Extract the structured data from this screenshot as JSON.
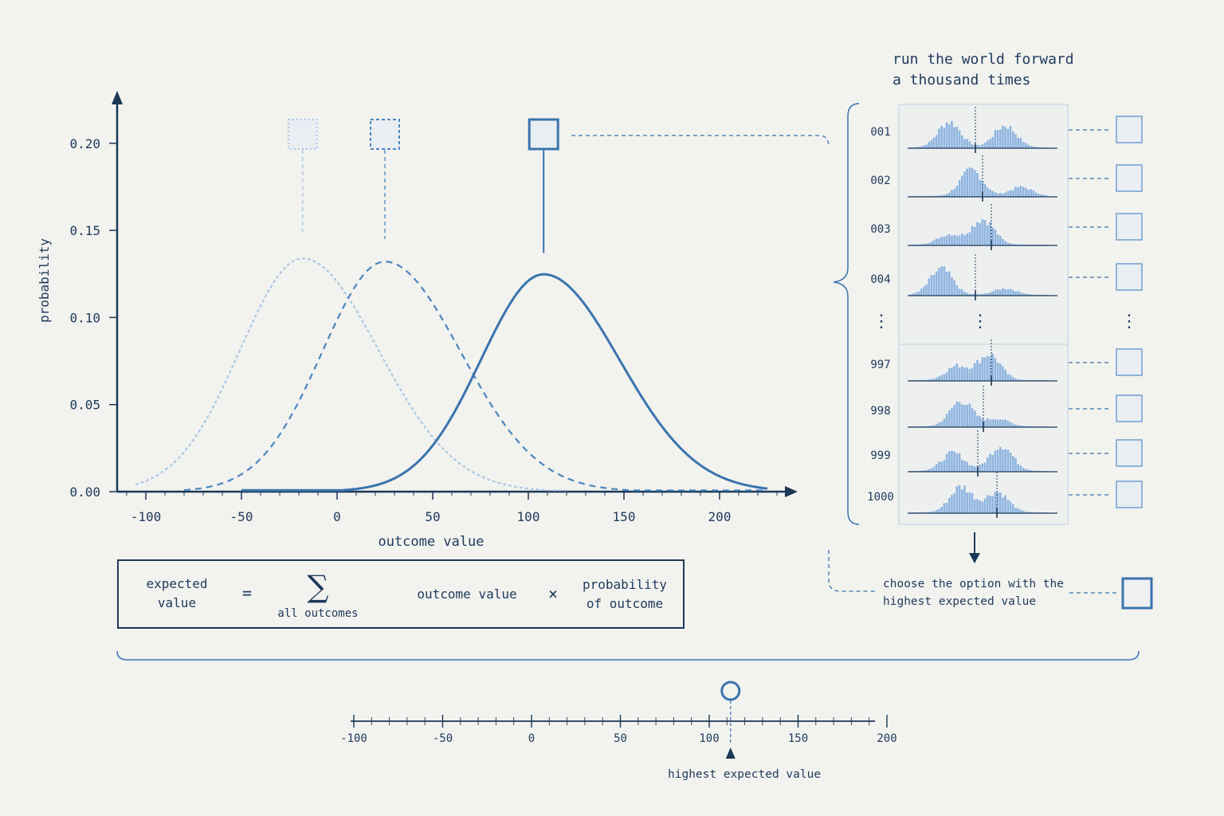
{
  "chart_data": {
    "type": "line",
    "xlabel": "outcome value",
    "ylabel": "probability",
    "x_ticks": [
      -100,
      -50,
      0,
      50,
      100,
      150,
      200
    ],
    "y_ticks": [
      "0.00",
      "0.05",
      "0.10",
      "0.15",
      "0.20"
    ],
    "xlim": [
      -115,
      245
    ],
    "ylim": [
      0,
      0.22
    ],
    "series": [
      {
        "style": "dotted",
        "peak_x": -18,
        "peak_y": 0.147,
        "x_range": [
          -105,
          120
        ],
        "color": "#a9c8e6"
      },
      {
        "style": "dashed",
        "peak_x": 25,
        "peak_y": 0.145,
        "x_range": [
          -80,
          225
        ],
        "color": "#4a86c0"
      },
      {
        "style": "solid",
        "peak_x": 108,
        "peak_y": 0.137,
        "x_range": [
          -50,
          225
        ],
        "color": "#3a74ae"
      }
    ]
  },
  "formula": {
    "lhs": [
      "expected",
      "value"
    ],
    "equals": "=",
    "sigma": "∑",
    "sigma_sub": "all outcomes",
    "term1": "outcome value",
    "times": "×",
    "term2": [
      "probability",
      "of outcome"
    ]
  },
  "simulation": {
    "title": [
      "run the world forward",
      "a thousand times"
    ],
    "rows": [
      "001",
      "002",
      "003",
      "004",
      "997",
      "998",
      "999",
      "1000"
    ],
    "ellipsis": "⋮",
    "choose_text": [
      "choose the option with the",
      "highest expected value"
    ]
  },
  "bottom_axis": {
    "ticks": [
      "-100",
      "-50",
      "0",
      "50",
      "100",
      "150",
      "200"
    ],
    "marker_value": 112,
    "marker_label": "highest expected value"
  },
  "colors": {
    "dark": "#1b3856",
    "mid": "#3a74ae",
    "light": "#a9c8e6",
    "bar": "#8db4e0",
    "background": "#f2f2ef"
  }
}
